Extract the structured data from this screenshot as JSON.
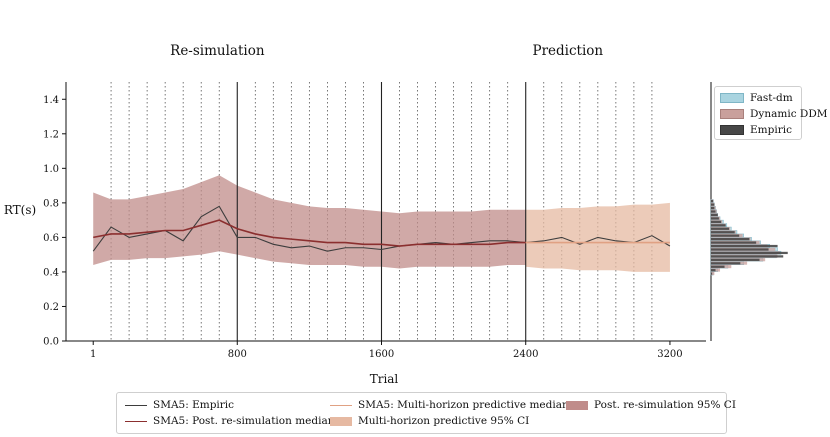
{
  "chart_data": [
    {
      "type": "line",
      "panel": "main",
      "xlabel": "Trial",
      "ylabel": "RT(s)",
      "section_titles": [
        "Re-simulation",
        "Prediction"
      ],
      "xticks": [
        1,
        800,
        1600,
        2400,
        3200
      ],
      "yticks": [
        0.0,
        0.2,
        0.4,
        0.6,
        0.8,
        1.0,
        1.2,
        1.4
      ],
      "xlim": [
        -150,
        3400
      ],
      "ylim": [
        0.0,
        1.5
      ],
      "session_boundaries": [
        800,
        1600,
        2400
      ],
      "block_boundaries": [
        100,
        200,
        300,
        400,
        500,
        600,
        700,
        900,
        1000,
        1100,
        1200,
        1300,
        1400,
        1500,
        1700,
        1800,
        1900,
        2000,
        2100,
        2200,
        2300,
        2500,
        2600,
        2700,
        2800,
        2900,
        3000,
        3100
      ],
      "x": [
        1,
        100,
        200,
        300,
        400,
        500,
        600,
        700,
        800,
        900,
        1000,
        1100,
        1200,
        1300,
        1400,
        1500,
        1600,
        1700,
        1800,
        1900,
        2000,
        2100,
        2200,
        2300,
        2400,
        2500,
        2600,
        2700,
        2800,
        2900,
        3000,
        3100,
        3200
      ],
      "series": [
        {
          "name": "SMA5: Empiric",
          "color": "#3d3d3d",
          "values": [
            0.52,
            0.66,
            0.6,
            0.62,
            0.64,
            0.58,
            0.72,
            0.78,
            0.6,
            0.6,
            0.56,
            0.54,
            0.55,
            0.52,
            0.54,
            0.54,
            0.53,
            0.55,
            0.56,
            0.57,
            0.56,
            0.57,
            0.58,
            0.58,
            0.57,
            0.58,
            0.6,
            0.56,
            0.6,
            0.58,
            0.57,
            0.61,
            0.55
          ]
        },
        {
          "name": "SMA5: Post. re-simulation median",
          "color": "#8b2f2f",
          "values": [
            0.6,
            0.62,
            0.62,
            0.63,
            0.64,
            0.64,
            0.67,
            0.7,
            0.65,
            0.62,
            0.6,
            0.59,
            0.58,
            0.57,
            0.57,
            0.56,
            0.56,
            0.55,
            0.56,
            0.56,
            0.56,
            0.56,
            0.56,
            0.57,
            0.57,
            null,
            null,
            null,
            null,
            null,
            null,
            null,
            null
          ]
        },
        {
          "name": "SMA5: Multi-horizon predictive median",
          "color": "#e0a183",
          "values": [
            null,
            null,
            null,
            null,
            null,
            null,
            null,
            null,
            null,
            null,
            null,
            null,
            null,
            null,
            null,
            null,
            null,
            null,
            null,
            null,
            null,
            null,
            null,
            null,
            0.57,
            0.57,
            0.57,
            0.57,
            0.57,
            0.57,
            0.57,
            0.57,
            0.57
          ]
        },
        {
          "name": "Post. re-simulation 95% CI",
          "color": "#c08c8a",
          "lower": [
            0.44,
            0.47,
            0.47,
            0.48,
            0.48,
            0.49,
            0.5,
            0.52,
            0.5,
            0.48,
            0.46,
            0.45,
            0.44,
            0.44,
            0.44,
            0.43,
            0.43,
            0.42,
            0.43,
            0.43,
            0.43,
            0.43,
            0.43,
            0.44,
            0.44,
            null,
            null,
            null,
            null,
            null,
            null,
            null,
            null
          ],
          "upper": [
            0.86,
            0.82,
            0.82,
            0.84,
            0.86,
            0.88,
            0.92,
            0.96,
            0.9,
            0.86,
            0.82,
            0.8,
            0.78,
            0.77,
            0.77,
            0.76,
            0.75,
            0.74,
            0.75,
            0.75,
            0.75,
            0.75,
            0.76,
            0.76,
            0.76,
            null,
            null,
            null,
            null,
            null,
            null,
            null,
            null
          ]
        },
        {
          "name": "Multi-horizon predictive 95% CI",
          "color": "#e6b9a2",
          "lower": [
            null,
            null,
            null,
            null,
            null,
            null,
            null,
            null,
            null,
            null,
            null,
            null,
            null,
            null,
            null,
            null,
            null,
            null,
            null,
            null,
            null,
            null,
            null,
            null,
            0.43,
            0.42,
            0.42,
            0.41,
            0.41,
            0.41,
            0.4,
            0.4,
            0.4
          ],
          "upper": [
            null,
            null,
            null,
            null,
            null,
            null,
            null,
            null,
            null,
            null,
            null,
            null,
            null,
            null,
            null,
            null,
            null,
            null,
            null,
            null,
            null,
            null,
            null,
            null,
            0.76,
            0.76,
            0.77,
            0.77,
            0.78,
            0.78,
            0.79,
            0.79,
            0.8
          ]
        }
      ]
    },
    {
      "type": "histogram",
      "panel": "marginal-right",
      "orientation": "horizontal",
      "bins_y": [
        0.38,
        0.4,
        0.42,
        0.44,
        0.46,
        0.48,
        0.5,
        0.52,
        0.54,
        0.56,
        0.58,
        0.6,
        0.62,
        0.64,
        0.66,
        0.68,
        0.7,
        0.72,
        0.74,
        0.76,
        0.78,
        0.8
      ],
      "series": [
        {
          "name": "Fast-dm",
          "color": "#a9d4e0",
          "density": [
            0.2,
            0.6,
            1.5,
            2.9,
            4.6,
            5.8,
            6.2,
            5.9,
            5.2,
            4.4,
            3.6,
            2.9,
            2.3,
            1.8,
            1.4,
            1.1,
            0.8,
            0.6,
            0.5,
            0.4,
            0.3,
            0.2
          ]
        },
        {
          "name": "Dynamic DDM",
          "color": "#c9a09c",
          "density": [
            0.3,
            0.8,
            1.8,
            3.2,
            4.8,
            5.9,
            6.1,
            5.7,
            5.0,
            4.3,
            3.5,
            2.8,
            2.2,
            1.7,
            1.3,
            1.0,
            0.8,
            0.6,
            0.5,
            0.4,
            0.3,
            0.2
          ]
        },
        {
          "name": "Empiric",
          "color": "#474747",
          "density": [
            0.1,
            0.4,
            1.2,
            2.6,
            4.3,
            6.4,
            6.8,
            5.1,
            5.9,
            4.0,
            3.4,
            2.5,
            2.1,
            1.6,
            1.3,
            0.9,
            0.7,
            0.6,
            0.4,
            0.3,
            0.3,
            0.2
          ]
        }
      ]
    }
  ],
  "legend_bottom": {
    "col1": [
      "SMA5: Empiric",
      "SMA5: Post. re-simulation median"
    ],
    "col2": [
      "SMA5: Multi-horizon predictive median",
      "Multi-horizon predictive 95% CI"
    ],
    "col3": [
      "Post. re-simulation 95% CI"
    ]
  },
  "legend_right": [
    "Fast-dm",
    "Dynamic DDM",
    "Empiric"
  ]
}
